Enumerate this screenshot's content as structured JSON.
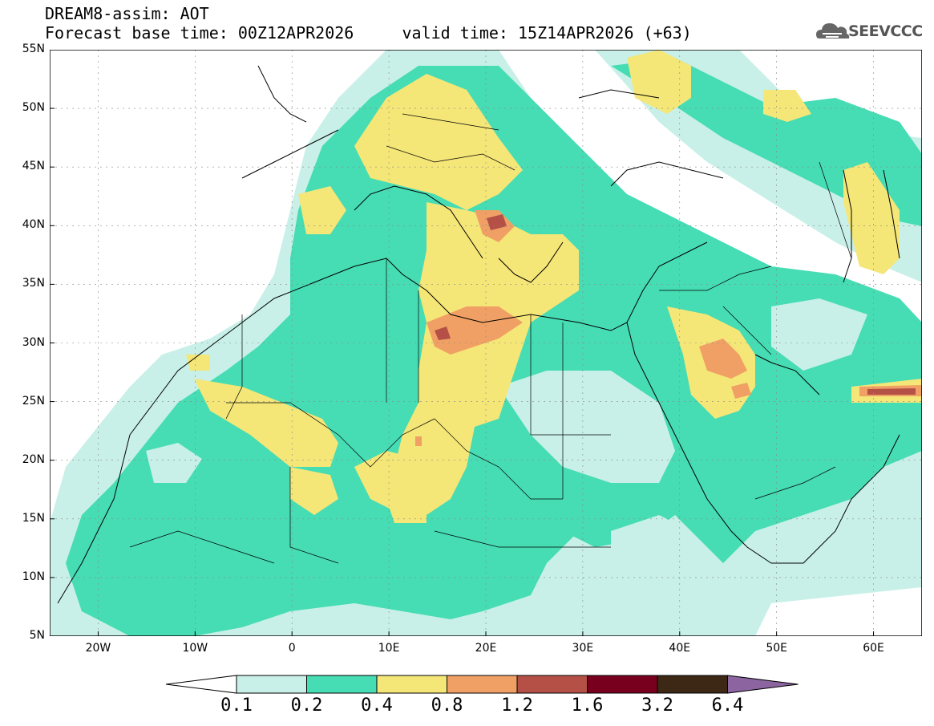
{
  "title": {
    "line1": "DREAM8-assim: AOT",
    "line2": "Forecast base time: 00Z12APR2026     valid time: 15Z14APR2026 (+63)"
  },
  "logo": {
    "text": "SEEVCCC",
    "icon": "cloud-icon"
  },
  "axes": {
    "lat_labels": [
      "55N",
      "50N",
      "45N",
      "40N",
      "35N",
      "30N",
      "25N",
      "20N",
      "15N",
      "10N",
      "5N"
    ],
    "lon_labels": [
      "20W",
      "10W",
      "0",
      "10E",
      "20E",
      "30E",
      "40E",
      "50E",
      "60E"
    ],
    "lat_range": [
      5,
      55
    ],
    "lon_range": [
      -25,
      65
    ]
  },
  "colorbar": {
    "labels": [
      "0.1",
      "0.2",
      "0.4",
      "0.8",
      "1.2",
      "1.6",
      "3.2",
      "6.4"
    ],
    "colors": [
      "#ffffff",
      "#c8f0e8",
      "#46dcb4",
      "#f5e678",
      "#f0a064",
      "#b45046",
      "#78001e",
      "#3c2814",
      "#8c64a0"
    ]
  },
  "map_colors": {
    "low": "#c8f0e8",
    "green": "#46dcb4",
    "yellow": "#f5e678",
    "orange": "#f0a064",
    "red": "#b45046",
    "land_line": "#000000"
  }
}
